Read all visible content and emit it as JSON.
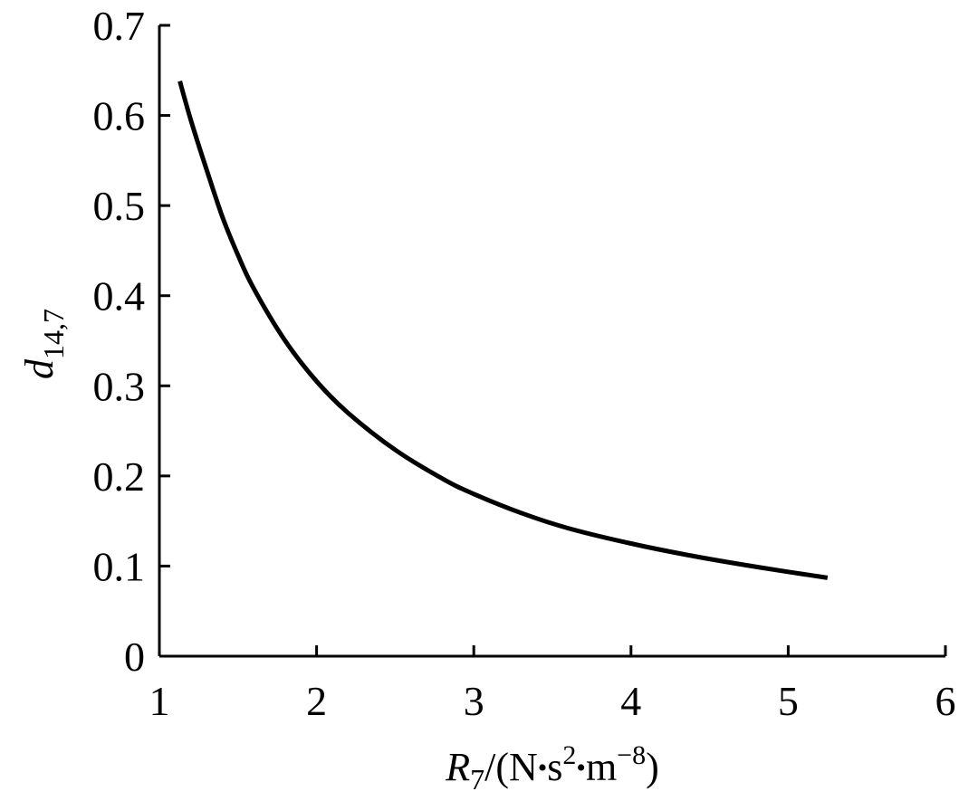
{
  "chart_data": {
    "type": "line",
    "title": "",
    "xlabel": {
      "base": "R",
      "base_sub": "7",
      "unit_open": "/(N",
      "dot1": "•",
      "s": "s",
      "s_sup": "2",
      "dot2": "•",
      "m": "m",
      "m_sup": "−8",
      "unit_close": ")"
    },
    "ylabel": {
      "base": "d",
      "sub": "14,7"
    },
    "xlim": [
      1,
      6
    ],
    "ylim": [
      0,
      0.7
    ],
    "xticks": [
      "1",
      "2",
      "3",
      "4",
      "5",
      "6"
    ],
    "yticks": [
      "0",
      "0.1",
      "0.2",
      "0.3",
      "0.4",
      "0.5",
      "0.6",
      "0.7"
    ],
    "grid": false,
    "legend": "none",
    "line_color": "#000000",
    "series": [
      {
        "x": [
          1.13,
          1.2,
          1.3,
          1.4,
          1.5,
          1.6,
          1.8,
          2.0,
          2.2,
          2.5,
          2.8,
          3.0,
          3.3,
          3.6,
          4.0,
          4.4,
          4.8,
          5.25
        ],
        "y": [
          0.638,
          0.595,
          0.54,
          0.488,
          0.445,
          0.408,
          0.35,
          0.305,
          0.27,
          0.229,
          0.197,
          0.18,
          0.159,
          0.142,
          0.125,
          0.111,
          0.099,
          0.087
        ]
      }
    ]
  }
}
